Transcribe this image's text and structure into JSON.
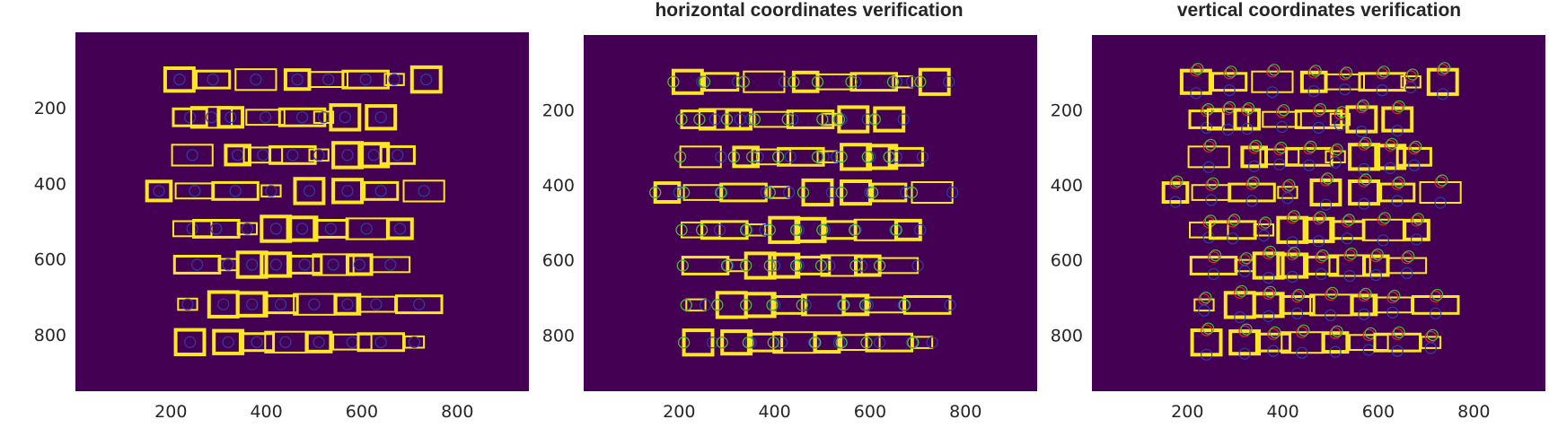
{
  "colors": {
    "background": "#440154",
    "box": "#fde725",
    "blue_marker": "#2c3fa8",
    "red_marker": "#e6242b",
    "green_marker": "#3fbf3f",
    "text": "#262626"
  },
  "chart_data": [
    {
      "type": "scatter",
      "panel": "original",
      "title": "",
      "xlabel": "",
      "ylabel": "",
      "xlim": [
        0,
        950
      ],
      "ylim": [
        950,
        0
      ],
      "y_reversed": true,
      "xticks": [
        200,
        400,
        600,
        800
      ],
      "yticks": [
        200,
        400,
        600,
        800
      ],
      "xtick_labels": [
        "200",
        "400",
        "600",
        "800"
      ],
      "ytick_labels": [
        "200",
        "400",
        "600",
        "800"
      ],
      "grid": false,
      "rows": [
        {
          "y": 125,
          "centers_x": [
            218,
            288,
            378,
            465,
            530,
            608,
            668,
            735
          ]
        },
        {
          "y": 225,
          "centers_x": [
            240,
            285,
            325,
            398,
            475,
            520,
            565,
            640
          ]
        },
        {
          "y": 325,
          "centers_x": [
            245,
            340,
            393,
            455,
            510,
            570,
            625,
            675
          ]
        },
        {
          "y": 420,
          "centers_x": [
            175,
            250,
            335,
            410,
            490,
            570,
            640,
            730
          ]
        },
        {
          "y": 520,
          "centers_x": [
            245,
            295,
            360,
            420,
            475,
            535,
            610,
            680
          ]
        },
        {
          "y": 615,
          "centers_x": [
            255,
            320,
            370,
            420,
            480,
            540,
            595,
            660
          ]
        },
        {
          "y": 720,
          "centers_x": [
            235,
            310,
            370,
            430,
            500,
            570,
            630,
            720
          ]
        },
        {
          "y": 820,
          "centers_x": [
            240,
            320,
            380,
            440,
            510,
            580,
            640,
            710
          ]
        }
      ]
    },
    {
      "type": "scatter",
      "panel": "horizontal",
      "title": "horizontal coordinates verification",
      "xlabel": "",
      "ylabel": "",
      "xlim": [
        0,
        950
      ],
      "ylim": [
        950,
        0
      ],
      "y_reversed": true,
      "xticks": [
        200,
        400,
        600,
        800
      ],
      "yticks": [
        200,
        400,
        600,
        800
      ],
      "xtick_labels": [
        "200",
        "400",
        "600",
        "800"
      ],
      "ytick_labels": [
        "200",
        "400",
        "600",
        "800"
      ],
      "grid": false,
      "rows": [
        {
          "y": 125,
          "centers_x": [
            218,
            288,
            378,
            465,
            530,
            608,
            668,
            735
          ]
        },
        {
          "y": 225,
          "centers_x": [
            240,
            285,
            325,
            398,
            475,
            520,
            565,
            640
          ]
        },
        {
          "y": 325,
          "centers_x": [
            245,
            340,
            393,
            455,
            510,
            570,
            625,
            675
          ]
        },
        {
          "y": 420,
          "centers_x": [
            175,
            250,
            335,
            410,
            490,
            570,
            640,
            730
          ]
        },
        {
          "y": 520,
          "centers_x": [
            245,
            295,
            360,
            420,
            475,
            535,
            610,
            680
          ]
        },
        {
          "y": 615,
          "centers_x": [
            255,
            320,
            370,
            420,
            480,
            540,
            595,
            660
          ]
        },
        {
          "y": 720,
          "centers_x": [
            235,
            310,
            370,
            430,
            500,
            570,
            630,
            720
          ]
        },
        {
          "y": 820,
          "centers_x": [
            240,
            320,
            380,
            440,
            510,
            580,
            640,
            710
          ]
        }
      ]
    },
    {
      "type": "scatter",
      "panel": "vertical",
      "title": "vertical coordinates verification",
      "xlabel": "",
      "ylabel": "",
      "xlim": [
        0,
        950
      ],
      "ylim": [
        950,
        0
      ],
      "y_reversed": true,
      "xticks": [
        200,
        400,
        600,
        800
      ],
      "yticks": [
        200,
        400,
        600,
        800
      ],
      "xtick_labels": [
        "200",
        "400",
        "600",
        "800"
      ],
      "ytick_labels": [
        "200",
        "400",
        "600",
        "800"
      ],
      "grid": false,
      "rows": [
        {
          "y": 125,
          "centers_x": [
            218,
            288,
            378,
            465,
            530,
            608,
            668,
            735
          ]
        },
        {
          "y": 225,
          "centers_x": [
            240,
            285,
            325,
            398,
            475,
            520,
            565,
            640
          ]
        },
        {
          "y": 325,
          "centers_x": [
            245,
            340,
            393,
            455,
            510,
            570,
            625,
            675
          ]
        },
        {
          "y": 420,
          "centers_x": [
            175,
            250,
            335,
            410,
            490,
            570,
            640,
            730
          ]
        },
        {
          "y": 520,
          "centers_x": [
            245,
            295,
            360,
            420,
            475,
            535,
            610,
            680
          ]
        },
        {
          "y": 615,
          "centers_x": [
            255,
            320,
            370,
            420,
            480,
            540,
            595,
            660
          ]
        },
        {
          "y": 720,
          "centers_x": [
            235,
            310,
            370,
            430,
            500,
            570,
            630,
            720
          ]
        },
        {
          "y": 820,
          "centers_x": [
            240,
            320,
            380,
            440,
            510,
            580,
            640,
            710
          ]
        }
      ]
    }
  ]
}
